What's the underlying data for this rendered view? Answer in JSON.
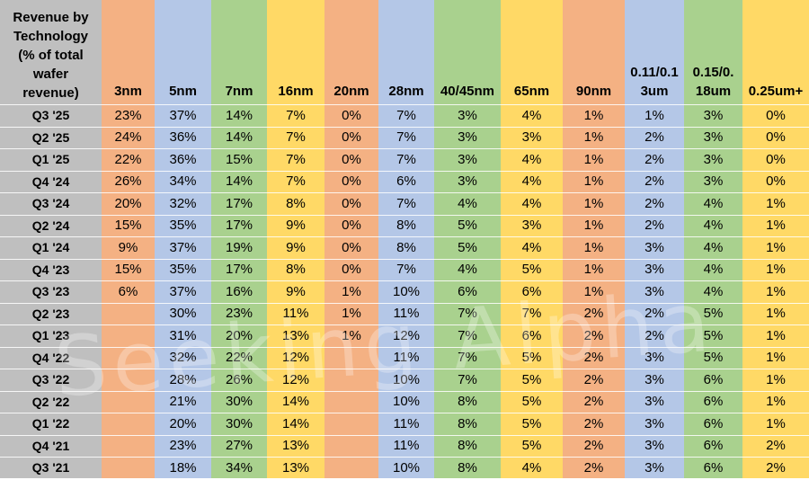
{
  "header_label": "Revenue by Technology (% of total wafer revenue)",
  "header_label_lines": [
    "Revenue by",
    "Technology",
    "(% of total",
    "wafer",
    "revenue)"
  ],
  "watermark_text": "Seeking Alpha",
  "chart_data": {
    "type": "table",
    "columns": [
      "3nm",
      "5nm",
      "7nm",
      "16nm",
      "20nm",
      "28nm",
      "40/45nm",
      "65nm",
      "90nm",
      "0.11/0.13um",
      "0.15/0.18um",
      "0.25um+"
    ],
    "column_display_lines": [
      [
        "3nm"
      ],
      [
        "5nm"
      ],
      [
        "7nm"
      ],
      [
        "16nm"
      ],
      [
        "20nm"
      ],
      [
        "28nm"
      ],
      [
        "40/45nm"
      ],
      [
        "65nm"
      ],
      [
        "90nm"
      ],
      [
        "0.11/0.1",
        "3um"
      ],
      [
        "0.15/0.",
        "18um"
      ],
      [
        "0.25um+"
      ]
    ],
    "column_colors": [
      "#f4b183",
      "#b4c7e7",
      "#a9d18e",
      "#ffd966",
      "#f4b183",
      "#b4c7e7",
      "#a9d18e",
      "#ffd966",
      "#f4b183",
      "#b4c7e7",
      "#a9d18e",
      "#ffd966"
    ],
    "rows": [
      {
        "label": "Q3 '25",
        "values": [
          "23%",
          "37%",
          "14%",
          "7%",
          "0%",
          "7%",
          "3%",
          "4%",
          "1%",
          "1%",
          "3%",
          "0%"
        ]
      },
      {
        "label": "Q2 '25",
        "values": [
          "24%",
          "36%",
          "14%",
          "7%",
          "0%",
          "7%",
          "3%",
          "3%",
          "1%",
          "2%",
          "3%",
          "0%"
        ]
      },
      {
        "label": "Q1 '25",
        "values": [
          "22%",
          "36%",
          "15%",
          "7%",
          "0%",
          "7%",
          "3%",
          "4%",
          "1%",
          "2%",
          "3%",
          "0%"
        ]
      },
      {
        "label": "Q4 '24",
        "values": [
          "26%",
          "34%",
          "14%",
          "7%",
          "0%",
          "6%",
          "3%",
          "4%",
          "1%",
          "2%",
          "3%",
          "0%"
        ]
      },
      {
        "label": "Q3 '24",
        "values": [
          "20%",
          "32%",
          "17%",
          "8%",
          "0%",
          "7%",
          "4%",
          "4%",
          "1%",
          "2%",
          "4%",
          "1%"
        ]
      },
      {
        "label": "Q2 '24",
        "values": [
          "15%",
          "35%",
          "17%",
          "9%",
          "0%",
          "8%",
          "5%",
          "3%",
          "1%",
          "2%",
          "4%",
          "1%"
        ]
      },
      {
        "label": "Q1 '24",
        "values": [
          "9%",
          "37%",
          "19%",
          "9%",
          "0%",
          "8%",
          "5%",
          "4%",
          "1%",
          "3%",
          "4%",
          "1%"
        ]
      },
      {
        "label": "Q4 '23",
        "values": [
          "15%",
          "35%",
          "17%",
          "8%",
          "0%",
          "7%",
          "4%",
          "5%",
          "1%",
          "3%",
          "4%",
          "1%"
        ]
      },
      {
        "label": "Q3 '23",
        "values": [
          "6%",
          "37%",
          "16%",
          "9%",
          "1%",
          "10%",
          "6%",
          "6%",
          "1%",
          "3%",
          "4%",
          "1%"
        ]
      },
      {
        "label": "Q2 '23",
        "values": [
          "",
          "30%",
          "23%",
          "11%",
          "1%",
          "11%",
          "7%",
          "7%",
          "2%",
          "2%",
          "5%",
          "1%"
        ]
      },
      {
        "label": "Q1 '23",
        "values": [
          "",
          "31%",
          "20%",
          "13%",
          "1%",
          "12%",
          "7%",
          "6%",
          "2%",
          "2%",
          "5%",
          "1%"
        ]
      },
      {
        "label": "Q4 '22",
        "values": [
          "",
          "32%",
          "22%",
          "12%",
          "",
          "11%",
          "7%",
          "5%",
          "2%",
          "3%",
          "5%",
          "1%"
        ]
      },
      {
        "label": "Q3 '22",
        "values": [
          "",
          "28%",
          "26%",
          "12%",
          "",
          "10%",
          "7%",
          "5%",
          "2%",
          "3%",
          "6%",
          "1%"
        ]
      },
      {
        "label": "Q2 '22",
        "values": [
          "",
          "21%",
          "30%",
          "14%",
          "",
          "10%",
          "8%",
          "5%",
          "2%",
          "3%",
          "6%",
          "1%"
        ]
      },
      {
        "label": "Q1 '22",
        "values": [
          "",
          "20%",
          "30%",
          "14%",
          "",
          "11%",
          "8%",
          "5%",
          "2%",
          "3%",
          "6%",
          "1%"
        ]
      },
      {
        "label": "Q4 '21",
        "values": [
          "",
          "23%",
          "27%",
          "13%",
          "",
          "11%",
          "8%",
          "5%",
          "2%",
          "3%",
          "6%",
          "2%"
        ]
      },
      {
        "label": "Q3 '21",
        "values": [
          "",
          "18%",
          "34%",
          "13%",
          "",
          "10%",
          "8%",
          "4%",
          "2%",
          "3%",
          "6%",
          "2%"
        ]
      }
    ]
  }
}
